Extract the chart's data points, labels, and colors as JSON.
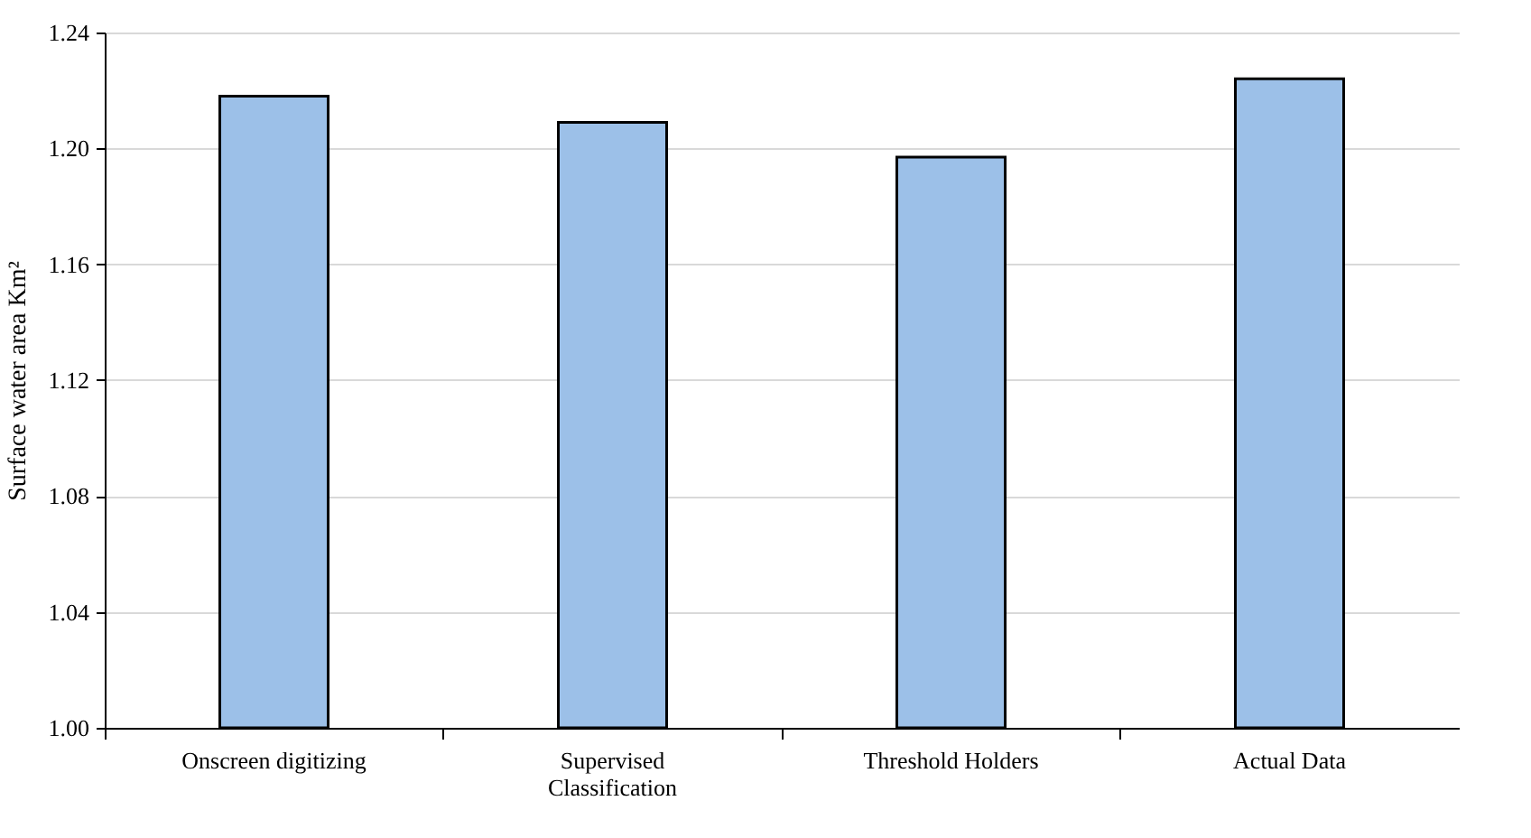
{
  "chart_data": {
    "type": "bar",
    "ylabel": "Surface water area Km²",
    "categories": [
      "Onscreen digitizing",
      "Supervised Classification",
      "Threshold Holders",
      "Actual Data"
    ],
    "values": [
      1.218,
      1.209,
      1.197,
      1.224
    ],
    "color": "#9cc0e8",
    "ylim": [
      1.0,
      1.24
    ],
    "yticks": [
      {
        "value": 1.0,
        "label": "1.00"
      },
      {
        "value": 1.04,
        "label": "1.04"
      },
      {
        "value": 1.08,
        "label": "1.08"
      },
      {
        "value": 1.12,
        "label": "1.12"
      },
      {
        "value": 1.16,
        "label": "1.16"
      },
      {
        "value": 1.2,
        "label": "1.20"
      },
      {
        "value": 1.24,
        "label": "1.24"
      }
    ],
    "grid": "y"
  }
}
